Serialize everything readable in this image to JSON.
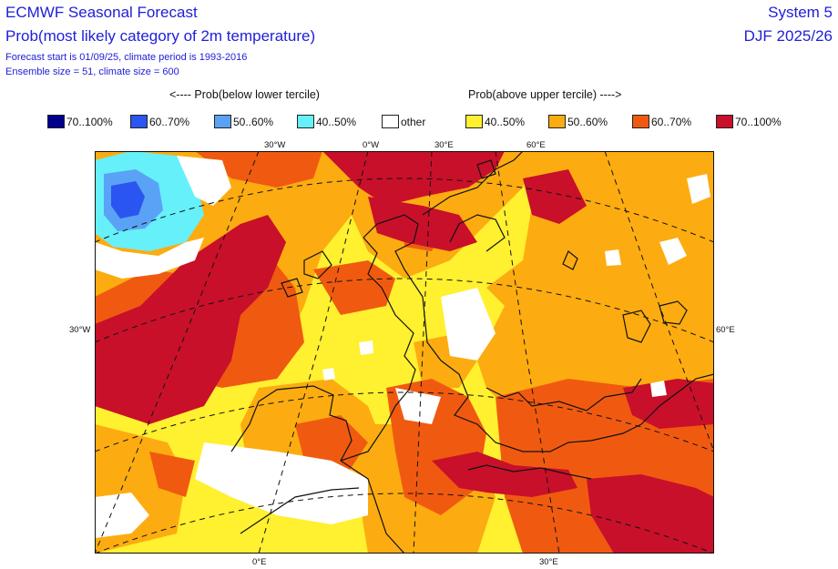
{
  "header": {
    "title": "ECMWF Seasonal Forecast",
    "subtitle": "Prob(most likely category of 2m temperature)",
    "forecast_line": "Forecast start is 01/09/25, climate period is 1993-2016",
    "ensemble_line": "Ensemble size = 51, climate size = 600",
    "system": "System 5",
    "season": "DJF 2025/26"
  },
  "legend": {
    "below_header": "<---- Prob(below lower tercile)",
    "above_header": "Prob(above upper tercile) ---->",
    "items": [
      {
        "label": "70..100%",
        "color": "#00008c"
      },
      {
        "label": "60..70%",
        "color": "#2a55f0"
      },
      {
        "label": "50..60%",
        "color": "#5aa2f5"
      },
      {
        "label": "40..50%",
        "color": "#66f0fa"
      },
      {
        "label": "other",
        "color": "#ffffff"
      },
      {
        "label": "40..50%",
        "color": "#fff030"
      },
      {
        "label": "50..60%",
        "color": "#fcac10"
      },
      {
        "label": "60..70%",
        "color": "#f05a10"
      },
      {
        "label": "70..100%",
        "color": "#c8102a"
      }
    ]
  },
  "axis_labels": {
    "top": [
      "30°W",
      "0°W",
      "30°E",
      "60°E"
    ],
    "left": "30°W",
    "right": "60°E",
    "bottom": [
      "0°E",
      "30°E"
    ]
  }
}
